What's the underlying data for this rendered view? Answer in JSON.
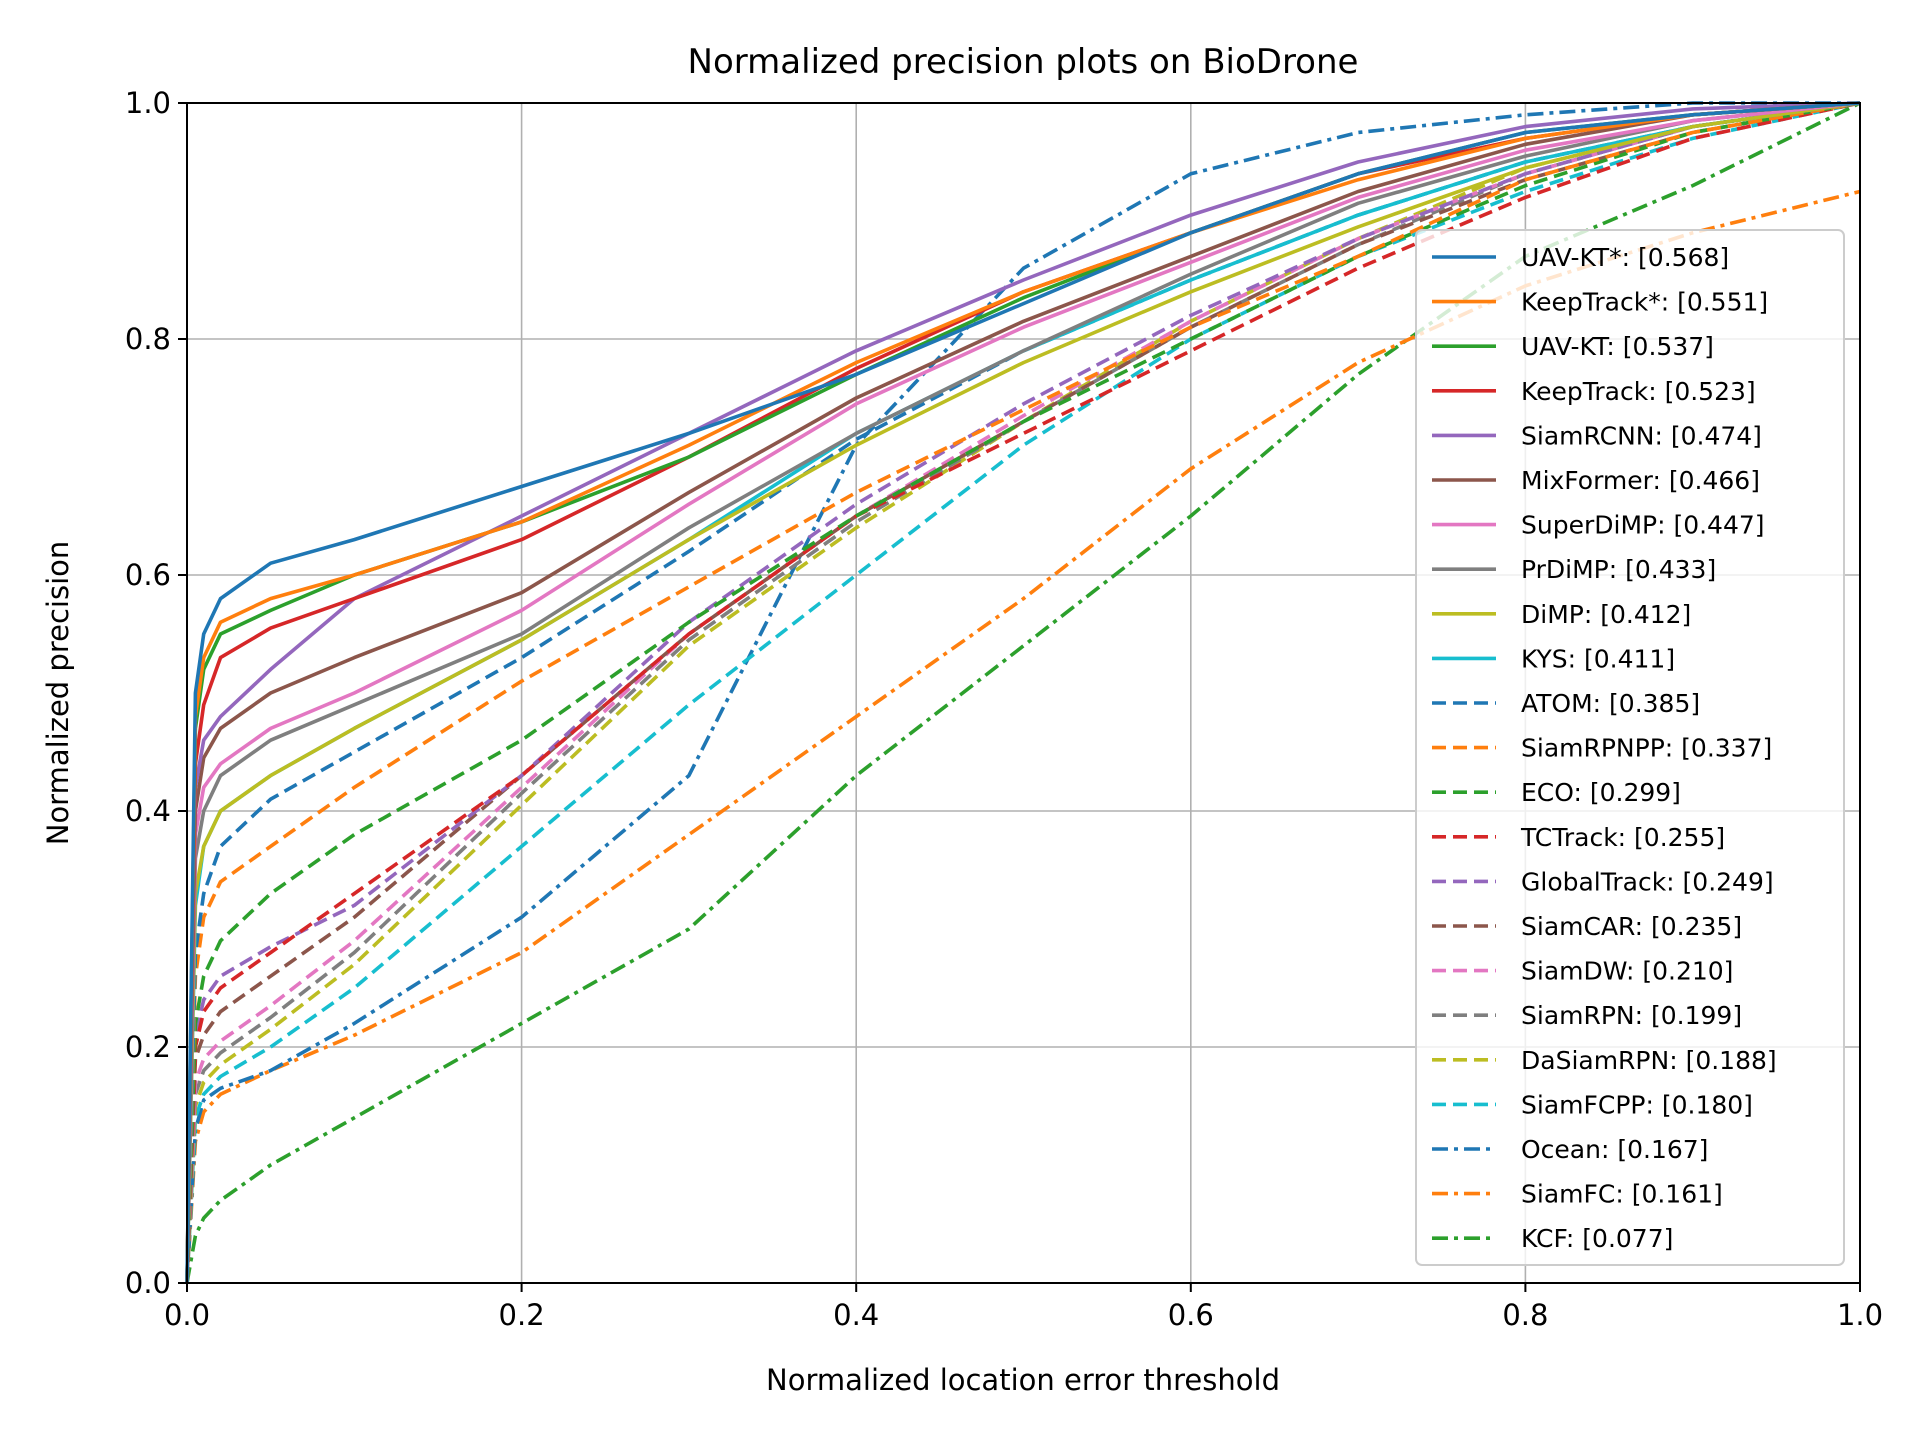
{
  "chart_data": {
    "type": "line",
    "title": "Normalized precision plots on BioDrone",
    "xlabel": "Normalized location error threshold",
    "ylabel": "Normalized precision",
    "xlim": [
      0,
      1
    ],
    "ylim": [
      0,
      1
    ],
    "x_ticks": [
      "0.0",
      "0.2",
      "0.4",
      "0.6",
      "0.8",
      "1.0"
    ],
    "y_ticks": [
      "0.0",
      "0.2",
      "0.4",
      "0.6",
      "0.8",
      "1.0"
    ],
    "grid": true,
    "legend_position": "right",
    "x": [
      0,
      0.005,
      0.01,
      0.02,
      0.05,
      0.1,
      0.2,
      0.3,
      0.4,
      0.5,
      0.6,
      0.7,
      0.8,
      0.9,
      1.0
    ],
    "series": [
      {
        "name": "UAV-KT*: [0.568]",
        "color": "#1f77b4",
        "style": "solid",
        "values": [
          0,
          0.5,
          0.55,
          0.58,
          0.61,
          0.63,
          0.675,
          0.72,
          0.77,
          0.83,
          0.89,
          0.94,
          0.975,
          0.99,
          1.0
        ]
      },
      {
        "name": "KeepTrack*: [0.551]",
        "color": "#ff7f0e",
        "style": "solid",
        "values": [
          0,
          0.48,
          0.53,
          0.56,
          0.58,
          0.6,
          0.645,
          0.71,
          0.78,
          0.84,
          0.89,
          0.935,
          0.97,
          0.99,
          1.0
        ]
      },
      {
        "name": "UAV-KT: [0.537]",
        "color": "#2ca02c",
        "style": "solid",
        "values": [
          0,
          0.47,
          0.52,
          0.55,
          0.57,
          0.6,
          0.645,
          0.7,
          0.77,
          0.835,
          0.89,
          0.94,
          0.975,
          0.99,
          1.0
        ]
      },
      {
        "name": "KeepTrack: [0.523]",
        "color": "#d62728",
        "style": "solid",
        "values": [
          0,
          0.44,
          0.49,
          0.53,
          0.555,
          0.58,
          0.63,
          0.7,
          0.775,
          0.84,
          0.89,
          0.94,
          0.97,
          0.99,
          1.0
        ]
      },
      {
        "name": "SiamRCNN: [0.474]",
        "color": "#9467bd",
        "style": "solid",
        "values": [
          0,
          0.42,
          0.46,
          0.48,
          0.52,
          0.58,
          0.65,
          0.72,
          0.79,
          0.85,
          0.905,
          0.95,
          0.98,
          0.995,
          1.0
        ]
      },
      {
        "name": "MixFormer: [0.466]",
        "color": "#8c564b",
        "style": "solid",
        "values": [
          0,
          0.4,
          0.445,
          0.47,
          0.5,
          0.53,
          0.585,
          0.67,
          0.75,
          0.815,
          0.87,
          0.925,
          0.965,
          0.99,
          1.0
        ]
      },
      {
        "name": "SuperDiMP: [0.447]",
        "color": "#e377c2",
        "style": "solid",
        "values": [
          0,
          0.38,
          0.42,
          0.44,
          0.47,
          0.5,
          0.57,
          0.66,
          0.745,
          0.81,
          0.865,
          0.92,
          0.96,
          0.985,
          1.0
        ]
      },
      {
        "name": "PrDiMP: [0.433]",
        "color": "#7f7f7f",
        "style": "solid",
        "values": [
          0,
          0.36,
          0.4,
          0.43,
          0.46,
          0.49,
          0.55,
          0.64,
          0.72,
          0.79,
          0.855,
          0.915,
          0.955,
          0.985,
          1.0
        ]
      },
      {
        "name": "DiMP: [0.412]",
        "color": "#bcbd22",
        "style": "solid",
        "values": [
          0,
          0.33,
          0.37,
          0.4,
          0.43,
          0.47,
          0.545,
          0.63,
          0.71,
          0.78,
          0.84,
          0.895,
          0.945,
          0.98,
          1.0
        ]
      },
      {
        "name": "KYS: [0.411]",
        "color": "#17becf",
        "style": "solid",
        "values": [
          0,
          0.32,
          0.37,
          0.4,
          0.43,
          0.47,
          0.545,
          0.63,
          0.72,
          0.79,
          0.85,
          0.905,
          0.95,
          0.98,
          1.0
        ]
      },
      {
        "name": "ATOM: [0.385]",
        "color": "#1f77b4",
        "style": "dashed",
        "values": [
          0,
          0.28,
          0.33,
          0.37,
          0.41,
          0.45,
          0.53,
          0.62,
          0.715,
          0.79,
          0.85,
          0.905,
          0.95,
          0.98,
          1.0
        ]
      },
      {
        "name": "SiamRPNPP: [0.337]",
        "color": "#ff7f0e",
        "style": "dashed",
        "values": [
          0,
          0.26,
          0.31,
          0.34,
          0.37,
          0.42,
          0.51,
          0.59,
          0.67,
          0.74,
          0.81,
          0.87,
          0.935,
          0.975,
          1.0
        ]
      },
      {
        "name": "ECO: [0.299]",
        "color": "#2ca02c",
        "style": "dashed",
        "values": [
          0,
          0.22,
          0.26,
          0.29,
          0.33,
          0.38,
          0.46,
          0.56,
          0.65,
          0.73,
          0.8,
          0.87,
          0.93,
          0.975,
          1.0
        ]
      },
      {
        "name": "TCTrack: [0.255]",
        "color": "#d62728",
        "style": "dashed",
        "values": [
          0,
          0.2,
          0.23,
          0.25,
          0.28,
          0.33,
          0.43,
          0.55,
          0.65,
          0.72,
          0.79,
          0.86,
          0.92,
          0.97,
          1.0
        ]
      },
      {
        "name": "GlobalTrack: [0.249]",
        "color": "#9467bd",
        "style": "dashed",
        "values": [
          0,
          0.21,
          0.24,
          0.26,
          0.285,
          0.32,
          0.43,
          0.56,
          0.66,
          0.745,
          0.82,
          0.885,
          0.94,
          0.98,
          1.0
        ]
      },
      {
        "name": "SiamCAR: [0.235]",
        "color": "#8c564b",
        "style": "dashed",
        "values": [
          0,
          0.19,
          0.21,
          0.23,
          0.26,
          0.31,
          0.43,
          0.55,
          0.65,
          0.73,
          0.81,
          0.88,
          0.935,
          0.975,
          1.0
        ]
      },
      {
        "name": "SiamDW: [0.210]",
        "color": "#e377c2",
        "style": "dashed",
        "values": [
          0,
          0.17,
          0.19,
          0.205,
          0.235,
          0.29,
          0.42,
          0.55,
          0.65,
          0.735,
          0.815,
          0.885,
          0.94,
          0.98,
          1.0
        ]
      },
      {
        "name": "SiamRPN: [0.199]",
        "color": "#7f7f7f",
        "style": "dashed",
        "values": [
          0,
          0.16,
          0.18,
          0.195,
          0.225,
          0.28,
          0.415,
          0.545,
          0.645,
          0.73,
          0.81,
          0.88,
          0.94,
          0.98,
          1.0
        ]
      },
      {
        "name": "DaSiamRPN: [0.188]",
        "color": "#bcbd22",
        "style": "dashed",
        "values": [
          0,
          0.15,
          0.17,
          0.185,
          0.215,
          0.27,
          0.405,
          0.54,
          0.64,
          0.73,
          0.815,
          0.885,
          0.945,
          0.98,
          1.0
        ]
      },
      {
        "name": "SiamFCPP: [0.180]",
        "color": "#17becf",
        "style": "dashed",
        "values": [
          0,
          0.14,
          0.16,
          0.175,
          0.2,
          0.25,
          0.37,
          0.49,
          0.6,
          0.71,
          0.8,
          0.87,
          0.925,
          0.97,
          1.0
        ]
      },
      {
        "name": "Ocean: [0.167]",
        "color": "#1f77b4",
        "style": "dashdot",
        "values": [
          0,
          0.13,
          0.155,
          0.165,
          0.18,
          0.22,
          0.31,
          0.43,
          0.71,
          0.86,
          0.94,
          0.975,
          0.99,
          1.0,
          1.0
        ]
      },
      {
        "name": "SiamFC: [0.161]",
        "color": "#ff7f0e",
        "style": "dashdot",
        "values": [
          0,
          0.12,
          0.145,
          0.16,
          0.18,
          0.21,
          0.28,
          0.38,
          0.48,
          0.58,
          0.69,
          0.78,
          0.845,
          0.89,
          0.925
        ]
      },
      {
        "name": "KCF: [0.077]",
        "color": "#2ca02c",
        "style": "dashdot",
        "values": [
          0,
          0.04,
          0.055,
          0.07,
          0.1,
          0.14,
          0.22,
          0.3,
          0.43,
          0.54,
          0.65,
          0.77,
          0.87,
          0.93,
          1.0
        ]
      }
    ]
  }
}
